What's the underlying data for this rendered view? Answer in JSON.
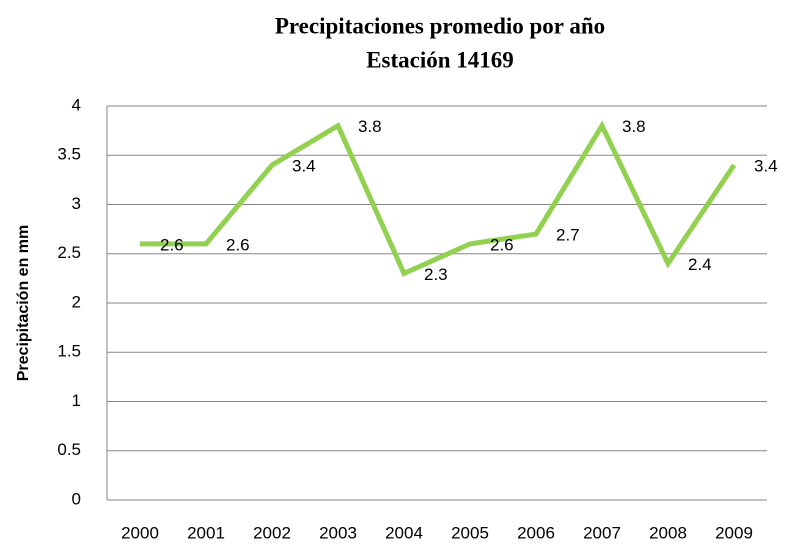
{
  "chart_data": {
    "type": "line",
    "title": [
      "Precipitaciones promedio por año",
      "Estación 14169"
    ],
    "y_label": "Precipitación en mm",
    "categories": [
      "2000",
      "2001",
      "2002",
      "2003",
      "2004",
      "2005",
      "2006",
      "2007",
      "2008",
      "2009"
    ],
    "series": [
      {
        "name": "Precipitación",
        "color": "#92d050",
        "values": [
          2.6,
          2.6,
          3.4,
          3.8,
          2.3,
          2.6,
          2.7,
          3.8,
          2.4,
          3.4
        ]
      }
    ],
    "ylim": [
      0,
      4
    ],
    "yticks": [
      0,
      0.5,
      1,
      1.5,
      2,
      2.5,
      3,
      3.5,
      4
    ],
    "grid": true
  }
}
